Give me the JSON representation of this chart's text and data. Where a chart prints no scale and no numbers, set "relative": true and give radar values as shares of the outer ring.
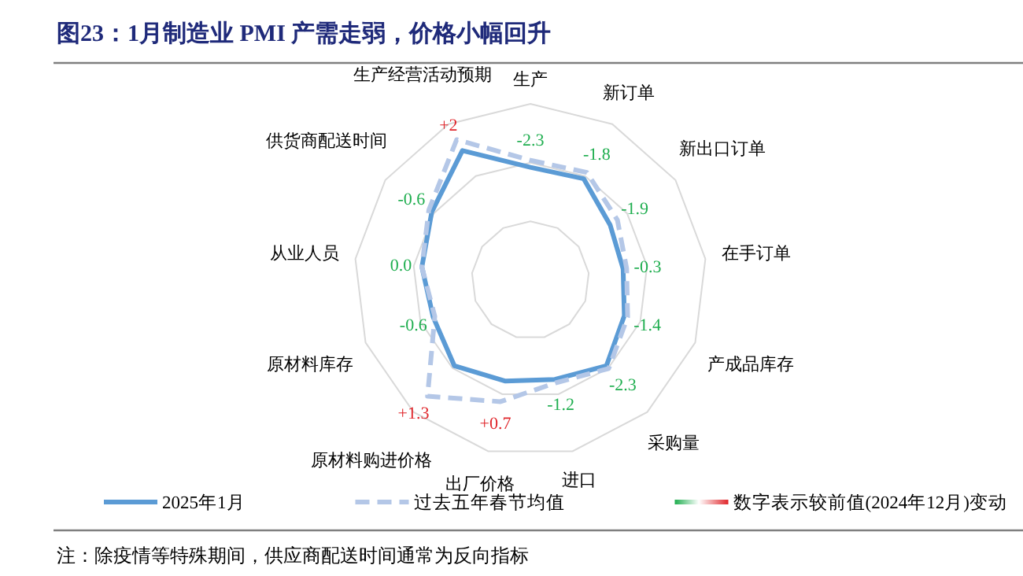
{
  "chart_data": {
    "type": "radar",
    "title": "图23：1月制造业 PMI 产需走弱，价格小幅回升",
    "categories": [
      "生产",
      "新订单",
      "新出口订单",
      "在手订单",
      "产成品库存",
      "采购量",
      "进口",
      "出厂价格",
      "原材料购进价格",
      "原材料库存",
      "从业人员",
      "供货商配送时间",
      "生产经营活动预期"
    ],
    "relative": true,
    "grid": true,
    "legend": "bottom",
    "marker": "none",
    "series": [
      {
        "name": "2025年1月",
        "color": "#5b9bd5",
        "line_style": "solid",
        "values": [
          0.64,
          0.65,
          0.55,
          0.53,
          0.57,
          0.65,
          0.58,
          0.59,
          0.65,
          0.59,
          0.62,
          0.68,
          0.83
        ]
      },
      {
        "name": "过去五年春节均值",
        "color": "#b4c7e7",
        "line_style": "dashed",
        "values": [
          0.68,
          0.69,
          0.6,
          0.55,
          0.59,
          0.67,
          0.6,
          0.71,
          0.88,
          0.58,
          0.62,
          0.7,
          0.9
        ]
      }
    ],
    "annotations": [
      "-2.3",
      "-1.8",
      "-1.9",
      "-0.3",
      "-1.4",
      "-2.3",
      "-1.2",
      "+0.7",
      "+1.3",
      "-0.6",
      "0.0",
      "-0.6",
      "+2",
      "数字表示较前值(2024年12月)变动",
      "注：除疫情等特殊期间，供应商配送时间通常为反向指标"
    ]
  }
}
